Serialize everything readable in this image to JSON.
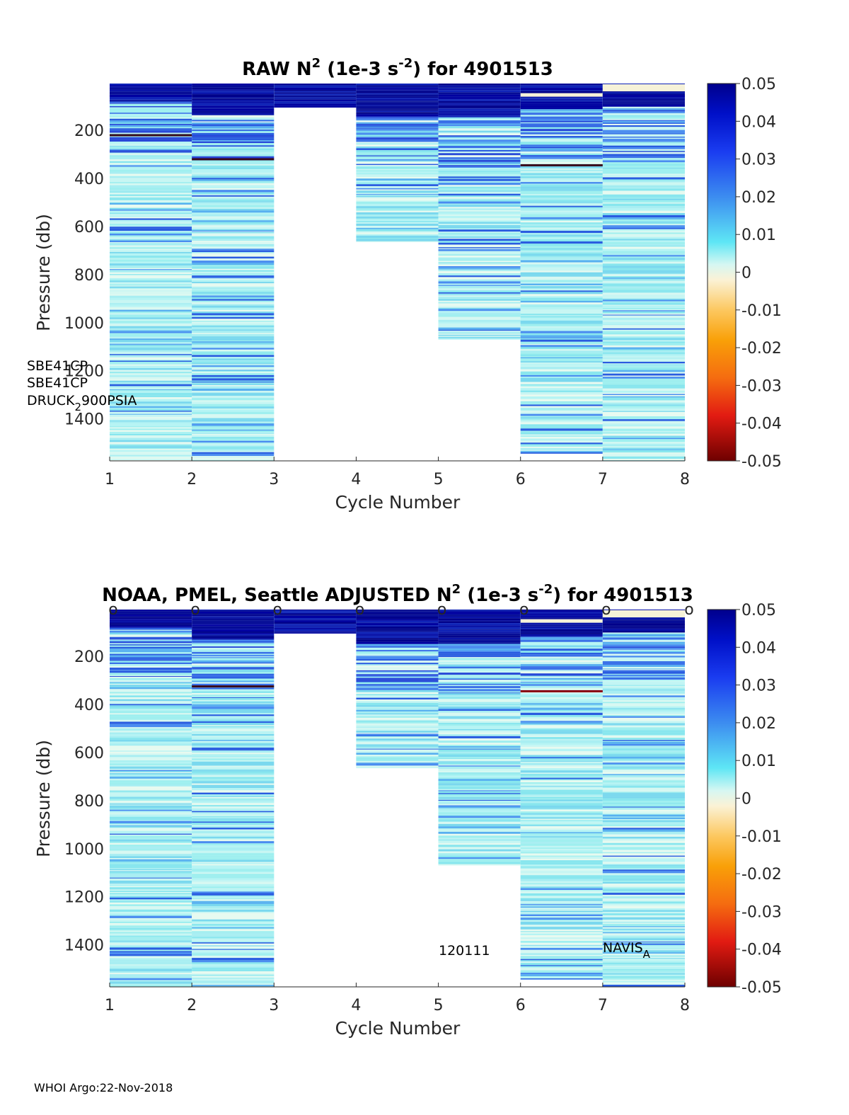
{
  "chart_data": [
    {
      "type": "heatmap",
      "title_main": "RAW N",
      "title_sup": "2",
      "title_mid": " (1e-3 s",
      "title_sup2": "-2",
      "title_end": ") for 4901513",
      "xlabel": "Cycle Number",
      "ylabel": "Pressure (db)",
      "xlim": [
        1,
        8
      ],
      "ylim": [
        1575,
        5
      ],
      "xticks": [
        "1",
        "2",
        "3",
        "4",
        "5",
        "6",
        "7",
        "8"
      ],
      "yticks": [
        "200",
        "400",
        "600",
        "800",
        "1000",
        "1200",
        "1400"
      ],
      "ytick_values": [
        200,
        400,
        600,
        800,
        1000,
        1200,
        1400
      ],
      "columns": [
        {
          "cycle": 1,
          "pmin": 5,
          "pmax": 1575,
          "surface_layer_bottom": 80
        },
        {
          "cycle": 2,
          "pmin": 5,
          "pmax": 1575,
          "surface_layer_bottom": 130
        },
        {
          "cycle": 3,
          "pmin": 5,
          "pmax": 105,
          "surface_layer_bottom": 105
        },
        {
          "cycle": 4,
          "pmin": 5,
          "pmax": 665,
          "surface_layer_bottom": 140
        },
        {
          "cycle": 5,
          "pmin": 5,
          "pmax": 1070,
          "surface_layer_bottom": 145
        },
        {
          "cycle": 6,
          "pmin": 5,
          "pmax": 1545,
          "surface_layer_bottom": 110
        },
        {
          "cycle": 7,
          "pmin": 5,
          "pmax": 1575,
          "surface_layer_bottom": 100
        }
      ],
      "dark_lines": [
        {
          "cycle": 1,
          "pressure": 220
        },
        {
          "cycle": 2,
          "pressure": 320
        },
        {
          "cycle": 6,
          "pressure": 345
        }
      ],
      "annotations": [
        "SBE41CP",
        "SBE41CP",
        "DRUCK",
        "2",
        "900PSIA"
      ],
      "colorbar": {
        "range": [
          -0.05,
          0.05
        ],
        "ticks": [
          "0.05",
          "0.04",
          "0.03",
          "0.02",
          "0.01",
          "0",
          "-0.01",
          "-0.02",
          "-0.03",
          "-0.04",
          "-0.05"
        ]
      }
    },
    {
      "type": "heatmap",
      "title_main": "NOAA, PMEL, Seattle  ADJUSTED N",
      "title_sup": "2",
      "title_mid": " (1e-3 s",
      "title_sup2": "-2",
      "title_end": ") for 4901513",
      "xlabel": "Cycle Number",
      "ylabel": "Pressure (db)",
      "xlim": [
        1,
        8
      ],
      "ylim": [
        1575,
        5
      ],
      "xticks": [
        "1",
        "2",
        "3",
        "4",
        "5",
        "6",
        "7",
        "8"
      ],
      "yticks": [
        "200",
        "400",
        "600",
        "800",
        "1000",
        "1200",
        "1400"
      ],
      "ytick_values": [
        200,
        400,
        600,
        800,
        1000,
        1200,
        1400
      ],
      "columns": [
        {
          "cycle": 1,
          "pmin": 5,
          "pmax": 1575,
          "surface_layer_bottom": 80
        },
        {
          "cycle": 2,
          "pmin": 5,
          "pmax": 1575,
          "surface_layer_bottom": 130
        },
        {
          "cycle": 3,
          "pmin": 5,
          "pmax": 105,
          "surface_layer_bottom": 105
        },
        {
          "cycle": 4,
          "pmin": 5,
          "pmax": 665,
          "surface_layer_bottom": 140
        },
        {
          "cycle": 5,
          "pmin": 5,
          "pmax": 1070,
          "surface_layer_bottom": 145
        },
        {
          "cycle": 6,
          "pmin": 5,
          "pmax": 1545,
          "surface_layer_bottom": 110
        },
        {
          "cycle": 7,
          "pmin": 5,
          "pmax": 1575,
          "surface_layer_bottom": 100
        }
      ],
      "dark_lines": [
        {
          "cycle": 2,
          "pressure": 325
        },
        {
          "cycle": 6,
          "pressure": 345
        }
      ],
      "qc_markers": [
        "o",
        "o",
        "o",
        "o",
        "o",
        "o",
        "o",
        "o"
      ],
      "annotations": [
        "120111",
        "NAVIS",
        "A"
      ],
      "colorbar": {
        "range": [
          -0.05,
          0.05
        ],
        "ticks": [
          "0.05",
          "0.04",
          "0.03",
          "0.02",
          "0.01",
          "0",
          "-0.01",
          "-0.02",
          "-0.03",
          "-0.04",
          "-0.05"
        ]
      }
    }
  ],
  "footer": "WHOI Argo:22-Nov-2018",
  "colors": {
    "deep_blue": "#0b0f8c",
    "cyan_light": "#c8f4f4",
    "zero": "#f3f0d8",
    "dark_red": "#7a0000"
  }
}
